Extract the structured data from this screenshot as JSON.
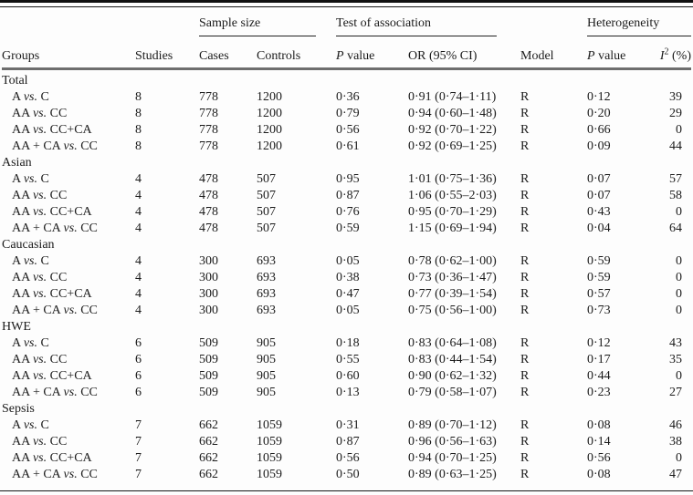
{
  "table": {
    "group_headers": {
      "sample_size": "Sample size",
      "test_of_association": "Test of association",
      "heterogeneity": "Heterogeneity"
    },
    "column_headers": {
      "groups": "Groups",
      "studies": "Studies",
      "cases": "Cases",
      "controls": "Controls",
      "p_value_assoc": {
        "italic": "P",
        "rest": " value"
      },
      "or_ci": "OR (95% CI)",
      "model": "Model",
      "p_value_het": {
        "italic": "P",
        "rest": " value"
      },
      "i2": {
        "italic": "I",
        "sup": "2",
        "rest": " (%)"
      }
    },
    "sections": [
      {
        "group": "Total",
        "rows": [
          {
            "a": "A",
            "vs": "vs.",
            "b": "C",
            "studies": "8",
            "cases": "778",
            "controls": "1200",
            "p": "0·36",
            "or": "0·91 (0·74–1·11)",
            "model": "R",
            "het_p": "0·12",
            "i2": "39"
          },
          {
            "a": "AA",
            "vs": "vs.",
            "b": "CC",
            "studies": "8",
            "cases": "778",
            "controls": "1200",
            "p": "0·79",
            "or": "0·94 (0·60–1·48)",
            "model": "R",
            "het_p": "0·20",
            "i2": "29"
          },
          {
            "a": "AA",
            "vs": "vs.",
            "b": "CC+CA",
            "studies": "8",
            "cases": "778",
            "controls": "1200",
            "p": "0·56",
            "or": "0·92 (0·70–1·22)",
            "model": "R",
            "het_p": "0·66",
            "i2": "0"
          },
          {
            "a": "AA + CA",
            "vs": "vs.",
            "b": "CC",
            "studies": "8",
            "cases": "778",
            "controls": "1200",
            "p": "0·61",
            "or": "0·92 (0·69–1·25)",
            "model": "R",
            "het_p": "0·09",
            "i2": "44"
          }
        ]
      },
      {
        "group": "Asian",
        "rows": [
          {
            "a": "A",
            "vs": "vs.",
            "b": "C",
            "studies": "4",
            "cases": "478",
            "controls": "507",
            "p": "0·95",
            "or": "1·01 (0·75–1·36)",
            "model": "R",
            "het_p": "0·07",
            "i2": "57"
          },
          {
            "a": "AA",
            "vs": "vs.",
            "b": "CC",
            "studies": "4",
            "cases": "478",
            "controls": "507",
            "p": "0·87",
            "or": "1·06 (0·55–2·03)",
            "model": "R",
            "het_p": "0·07",
            "i2": "58"
          },
          {
            "a": "AA",
            "vs": "vs.",
            "b": "CC+CA",
            "studies": "4",
            "cases": "478",
            "controls": "507",
            "p": "0·76",
            "or": "0·95 (0·70–1·29)",
            "model": "R",
            "het_p": "0·43",
            "i2": "0"
          },
          {
            "a": "AA + CA",
            "vs": "vs.",
            "b": "CC",
            "studies": "4",
            "cases": "478",
            "controls": "507",
            "p": "0·59",
            "or": "1·15 (0·69–1·94)",
            "model": "R",
            "het_p": "0·04",
            "i2": "64"
          }
        ]
      },
      {
        "group": "Caucasian",
        "rows": [
          {
            "a": "A",
            "vs": "vs.",
            "b": "C",
            "studies": "4",
            "cases": "300",
            "controls": "693",
            "p": "0·05",
            "or": "0·78 (0·62–1·00)",
            "model": "R",
            "het_p": "0·59",
            "i2": "0"
          },
          {
            "a": "AA",
            "vs": "vs.",
            "b": "CC",
            "studies": "4",
            "cases": "300",
            "controls": "693",
            "p": "0·38",
            "or": "0·73 (0·36–1·47)",
            "model": "R",
            "het_p": "0·59",
            "i2": "0"
          },
          {
            "a": "AA",
            "vs": "vs.",
            "b": "CC+CA",
            "studies": "4",
            "cases": "300",
            "controls": "693",
            "p": "0·47",
            "or": "0·77 (0·39–1·54)",
            "model": "R",
            "het_p": "0·57",
            "i2": "0"
          },
          {
            "a": "AA + CA",
            "vs": "vs.",
            "b": "CC",
            "studies": "4",
            "cases": "300",
            "controls": "693",
            "p": "0·05",
            "or": "0·75 (0·56–1·00)",
            "model": "R",
            "het_p": "0·73",
            "i2": "0"
          }
        ]
      },
      {
        "group": "HWE",
        "rows": [
          {
            "a": "A",
            "vs": "vs.",
            "b": "C",
            "studies": "6",
            "cases": "509",
            "controls": "905",
            "p": "0·18",
            "or": "0·83 (0·64–1·08)",
            "model": "R",
            "het_p": "0·12",
            "i2": "43"
          },
          {
            "a": "AA",
            "vs": "vs.",
            "b": "CC",
            "studies": "6",
            "cases": "509",
            "controls": "905",
            "p": "0·55",
            "or": "0·83 (0·44–1·54)",
            "model": "R",
            "het_p": "0·17",
            "i2": "35"
          },
          {
            "a": "AA",
            "vs": "vs.",
            "b": "CC+CA",
            "studies": "6",
            "cases": "509",
            "controls": "905",
            "p": "0·60",
            "or": "0·90 (0·62–1·32)",
            "model": "R",
            "het_p": "0·44",
            "i2": "0"
          },
          {
            "a": "AA + CA",
            "vs": "vs.",
            "b": "CC",
            "studies": "6",
            "cases": "509",
            "controls": "905",
            "p": "0·13",
            "or": "0·79 (0·58–1·07)",
            "model": "R",
            "het_p": "0·23",
            "i2": "27"
          }
        ]
      },
      {
        "group": "Sepsis",
        "rows": [
          {
            "a": "A",
            "vs": "vs.",
            "b": "C",
            "studies": "7",
            "cases": "662",
            "controls": "1059",
            "p": "0·31",
            "or": "0·89 (0·70–1·12)",
            "model": "R",
            "het_p": "0·08",
            "i2": "46"
          },
          {
            "a": "AA",
            "vs": "vs.",
            "b": "CC",
            "studies": "7",
            "cases": "662",
            "controls": "1059",
            "p": "0·87",
            "or": "0·96 (0·56–1·63)",
            "model": "R",
            "het_p": "0·14",
            "i2": "38"
          },
          {
            "a": "AA",
            "vs": "vs.",
            "b": "CC+CA",
            "studies": "7",
            "cases": "662",
            "controls": "1059",
            "p": "0·56",
            "or": "0·94 (0·70–1·25)",
            "model": "R",
            "het_p": "0·56",
            "i2": "0"
          },
          {
            "a": "AA + CA",
            "vs": "vs.",
            "b": "CC",
            "studies": "7",
            "cases": "662",
            "controls": "1059",
            "p": "0·50",
            "or": "0·89 (0·63–1·25)",
            "model": "R",
            "het_p": "0·08",
            "i2": "47"
          }
        ]
      }
    ]
  }
}
